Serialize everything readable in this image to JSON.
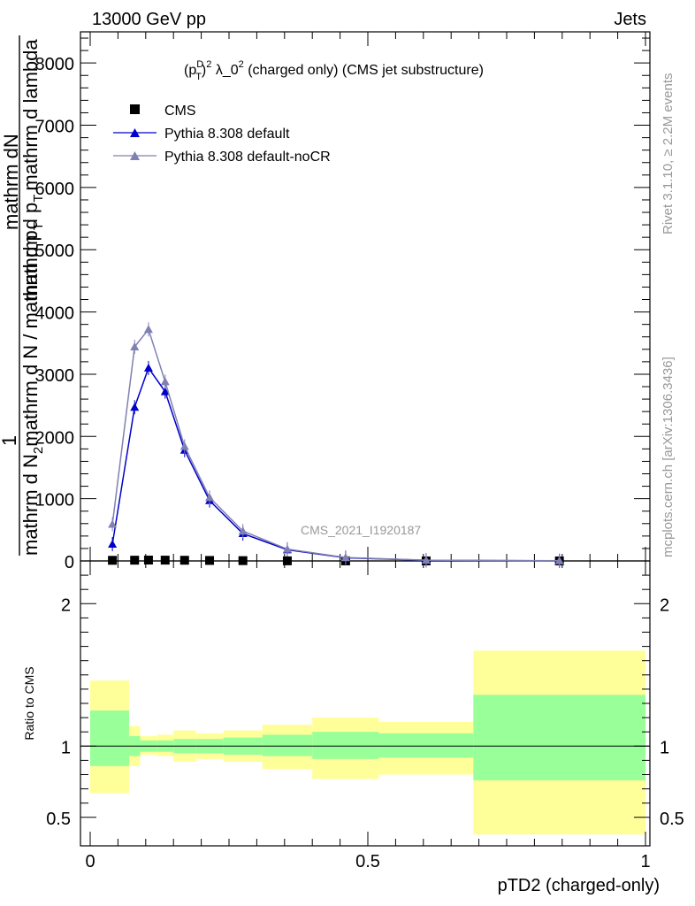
{
  "header": {
    "left": "13000 GeV pp",
    "right": "Jets",
    "side_top": "Rivet 3.1.10, ≥ 2.2M events",
    "side_bottom": "mcplots.cern.ch [arXiv:1306.3436]",
    "watermark": "CMS_2021_I1920187"
  },
  "chart_data": [
    {
      "type": "line",
      "title": "(p_T^D)^2 λ_0^2 (charged only) (CMS jet substructure)",
      "title_parts": {
        "a": "(p",
        "sup1": "D",
        "sub1": "T",
        "b": ")",
        "sup2": "2",
        "c": " λ_0",
        "sup3": "2",
        "d": " (charged only) (CMS jet substructure)"
      },
      "ylabel": {
        "one": "1",
        "n": "mathrm d N",
        "nsub": "2",
        "dn": "mathrm dN",
        "den": "mathrm d p",
        "densub": "T",
        "dlam": "mathrm d lambda",
        "bottom": "mathrm d N / mathrm d p",
        "bottomsub": "T"
      },
      "xlim": [
        0,
        1
      ],
      "ylim": [
        0,
        8500
      ],
      "yticks": [
        0,
        1000,
        2000,
        3000,
        4000,
        5000,
        6000,
        7000,
        8000
      ],
      "ytick_labels": [
        "0",
        "1000",
        "2000",
        "3000",
        "4000",
        "5000",
        "6000",
        "7000",
        "8000"
      ],
      "legend_placement": "top-left",
      "series": [
        {
          "name": "CMS",
          "color": "#000000",
          "marker": "square",
          "x": [
            0.04,
            0.08,
            0.105,
            0.135,
            0.17,
            0.215,
            0.275,
            0.355,
            0.46,
            0.605,
            0.845
          ],
          "y": [
            10,
            12,
            14,
            13,
            11,
            8,
            5,
            2,
            1,
            0.5,
            0.2
          ]
        },
        {
          "name": "Pythia 8.308 default",
          "color": "#0000cc",
          "marker": "triangle",
          "x": [
            0.04,
            0.08,
            0.105,
            0.135,
            0.17,
            0.215,
            0.275,
            0.355,
            0.46,
            0.605,
            0.845
          ],
          "y": [
            270,
            2470,
            3100,
            2720,
            1780,
            970,
            440,
            180,
            50,
            10,
            2
          ]
        },
        {
          "name": "Pythia 8.308 default-noCR",
          "color": "#8080b3",
          "marker": "triangle",
          "x": [
            0.04,
            0.08,
            0.105,
            0.135,
            0.17,
            0.215,
            0.275,
            0.355,
            0.46,
            0.605,
            0.845
          ],
          "y": [
            590,
            3440,
            3720,
            2880,
            1840,
            1020,
            480,
            190,
            55,
            12,
            3
          ]
        }
      ]
    },
    {
      "type": "area",
      "ylabel": "Ratio to CMS",
      "xlabel": "pTD2 (charged-only)",
      "xlim": [
        0,
        1
      ],
      "ylim": [
        0.3,
        2.3
      ],
      "xticks": [
        0,
        0.5,
        1
      ],
      "xtick_labels": [
        "0",
        "0.5",
        "1"
      ],
      "yticks": [
        0.5,
        1,
        2
      ],
      "ytick_labels": [
        "0.5",
        "1",
        "2"
      ],
      "reference": 1,
      "bins": [
        {
          "x0": 0.0,
          "x1": 0.07,
          "inner_lo": 0.86,
          "inner_hi": 1.25,
          "outer_lo": 0.67,
          "outer_hi": 1.46
        },
        {
          "x0": 0.07,
          "x1": 0.09,
          "inner_lo": 0.93,
          "inner_hi": 1.07,
          "outer_lo": 0.86,
          "outer_hi": 1.14
        },
        {
          "x0": 0.09,
          "x1": 0.12,
          "inner_lo": 0.96,
          "inner_hi": 1.04,
          "outer_lo": 0.94,
          "outer_hi": 1.07
        },
        {
          "x0": 0.12,
          "x1": 0.15,
          "inner_lo": 0.96,
          "inner_hi": 1.04,
          "outer_lo": 0.93,
          "outer_hi": 1.08
        },
        {
          "x0": 0.15,
          "x1": 0.19,
          "inner_lo": 0.95,
          "inner_hi": 1.05,
          "outer_lo": 0.89,
          "outer_hi": 1.11
        },
        {
          "x0": 0.19,
          "x1": 0.24,
          "inner_lo": 0.95,
          "inner_hi": 1.05,
          "outer_lo": 0.91,
          "outer_hi": 1.09
        },
        {
          "x0": 0.24,
          "x1": 0.31,
          "inner_lo": 0.94,
          "inner_hi": 1.06,
          "outer_lo": 0.89,
          "outer_hi": 1.11
        },
        {
          "x0": 0.31,
          "x1": 0.4,
          "inner_lo": 0.93,
          "inner_hi": 1.08,
          "outer_lo": 0.84,
          "outer_hi": 1.15
        },
        {
          "x0": 0.4,
          "x1": 0.52,
          "inner_lo": 0.91,
          "inner_hi": 1.1,
          "outer_lo": 0.77,
          "outer_hi": 1.2
        },
        {
          "x0": 0.52,
          "x1": 0.69,
          "inner_lo": 0.92,
          "inner_hi": 1.09,
          "outer_lo": 0.8,
          "outer_hi": 1.17
        },
        {
          "x0": 0.69,
          "x1": 1.0,
          "inner_lo": 0.76,
          "inner_hi": 1.36,
          "outer_lo": 0.38,
          "outer_hi": 1.67
        }
      ],
      "colors": {
        "inner": "#99ff99",
        "outer": "#ffff99"
      }
    }
  ]
}
